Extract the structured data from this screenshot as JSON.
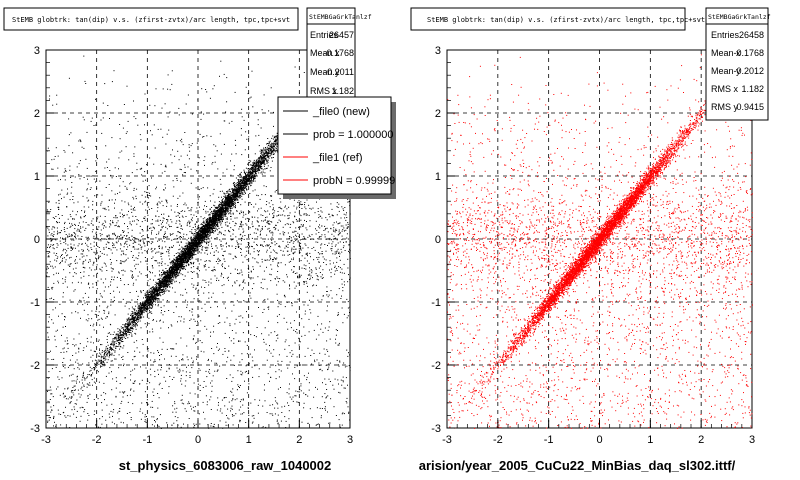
{
  "chart_data": [
    {
      "type": "scatter",
      "title": "StEMB globtrk: tan(dip) v.s. (zfirst-zvtx)/arc length, tpc,tpc+svt",
      "stats_box": {
        "name": "StEMBGaGrkTanlzf",
        "entries_label": "Entries",
        "entries": "26457",
        "meanx_label": "Mean x",
        "meanx": "-0.1768",
        "meany_label": "Mean y",
        "meany": "-0.2011",
        "rmsx_label": "RMS x",
        "rmsx": "1.182"
      },
      "legend": [
        {
          "label": "_file0 (new)",
          "color": "#000000"
        },
        {
          "label": "prob = 1.000000",
          "color": "#000000"
        },
        {
          "label": "_file1 (ref)",
          "color": "#ff0000"
        },
        {
          "label": "probN = 0.99999",
          "color": "#ff0000"
        }
      ],
      "xlabel": "st_physics_6083006_raw_1040002",
      "xlim": [
        -3,
        3
      ],
      "ylim": [
        -3,
        3
      ],
      "xticks": [
        "-3",
        "-2",
        "-1",
        "0",
        "1",
        "2",
        "3"
      ],
      "yticks": [
        "-3",
        "-2",
        "-1",
        "0",
        "1",
        "2",
        "3"
      ],
      "grid": true,
      "color": "#000000",
      "points_total": 26457,
      "distribution": "dense band along y = x with diffuse background, horizontal band near y = 0"
    },
    {
      "type": "scatter",
      "title": "StEMB globtrk: tan(dip) v.s. (zfirst-zvtx)/arc length, tpc,tpc+svt",
      "stats_box": {
        "name": "StEMBGaGrkTanlzf",
        "entries_label": "Entries",
        "entries": "26458",
        "meanx_label": "Mean x",
        "meanx": "-0.1768",
        "meany_label": "Mean y",
        "meany": "-0.2012",
        "rmsx_label": "RMS x",
        "rmsx": "1.182",
        "rmsy_label": "RMS y",
        "rmsy": "0.9415"
      },
      "xlabel": "arision/year_2005_CuCu22_MinBias_daq_sl302.ittf/",
      "xlim": [
        -3,
        3
      ],
      "ylim": [
        -3,
        3
      ],
      "xticks": [
        "-3",
        "-2",
        "-1",
        "0",
        "1",
        "2",
        "3"
      ],
      "yticks": [
        "-3",
        "-2",
        "-1",
        "0",
        "1",
        "2",
        "3"
      ],
      "grid": true,
      "color": "#ff0000",
      "points_total": 26458,
      "distribution": "dense band along y = x with diffuse background, horizontal band near y = 0"
    }
  ]
}
